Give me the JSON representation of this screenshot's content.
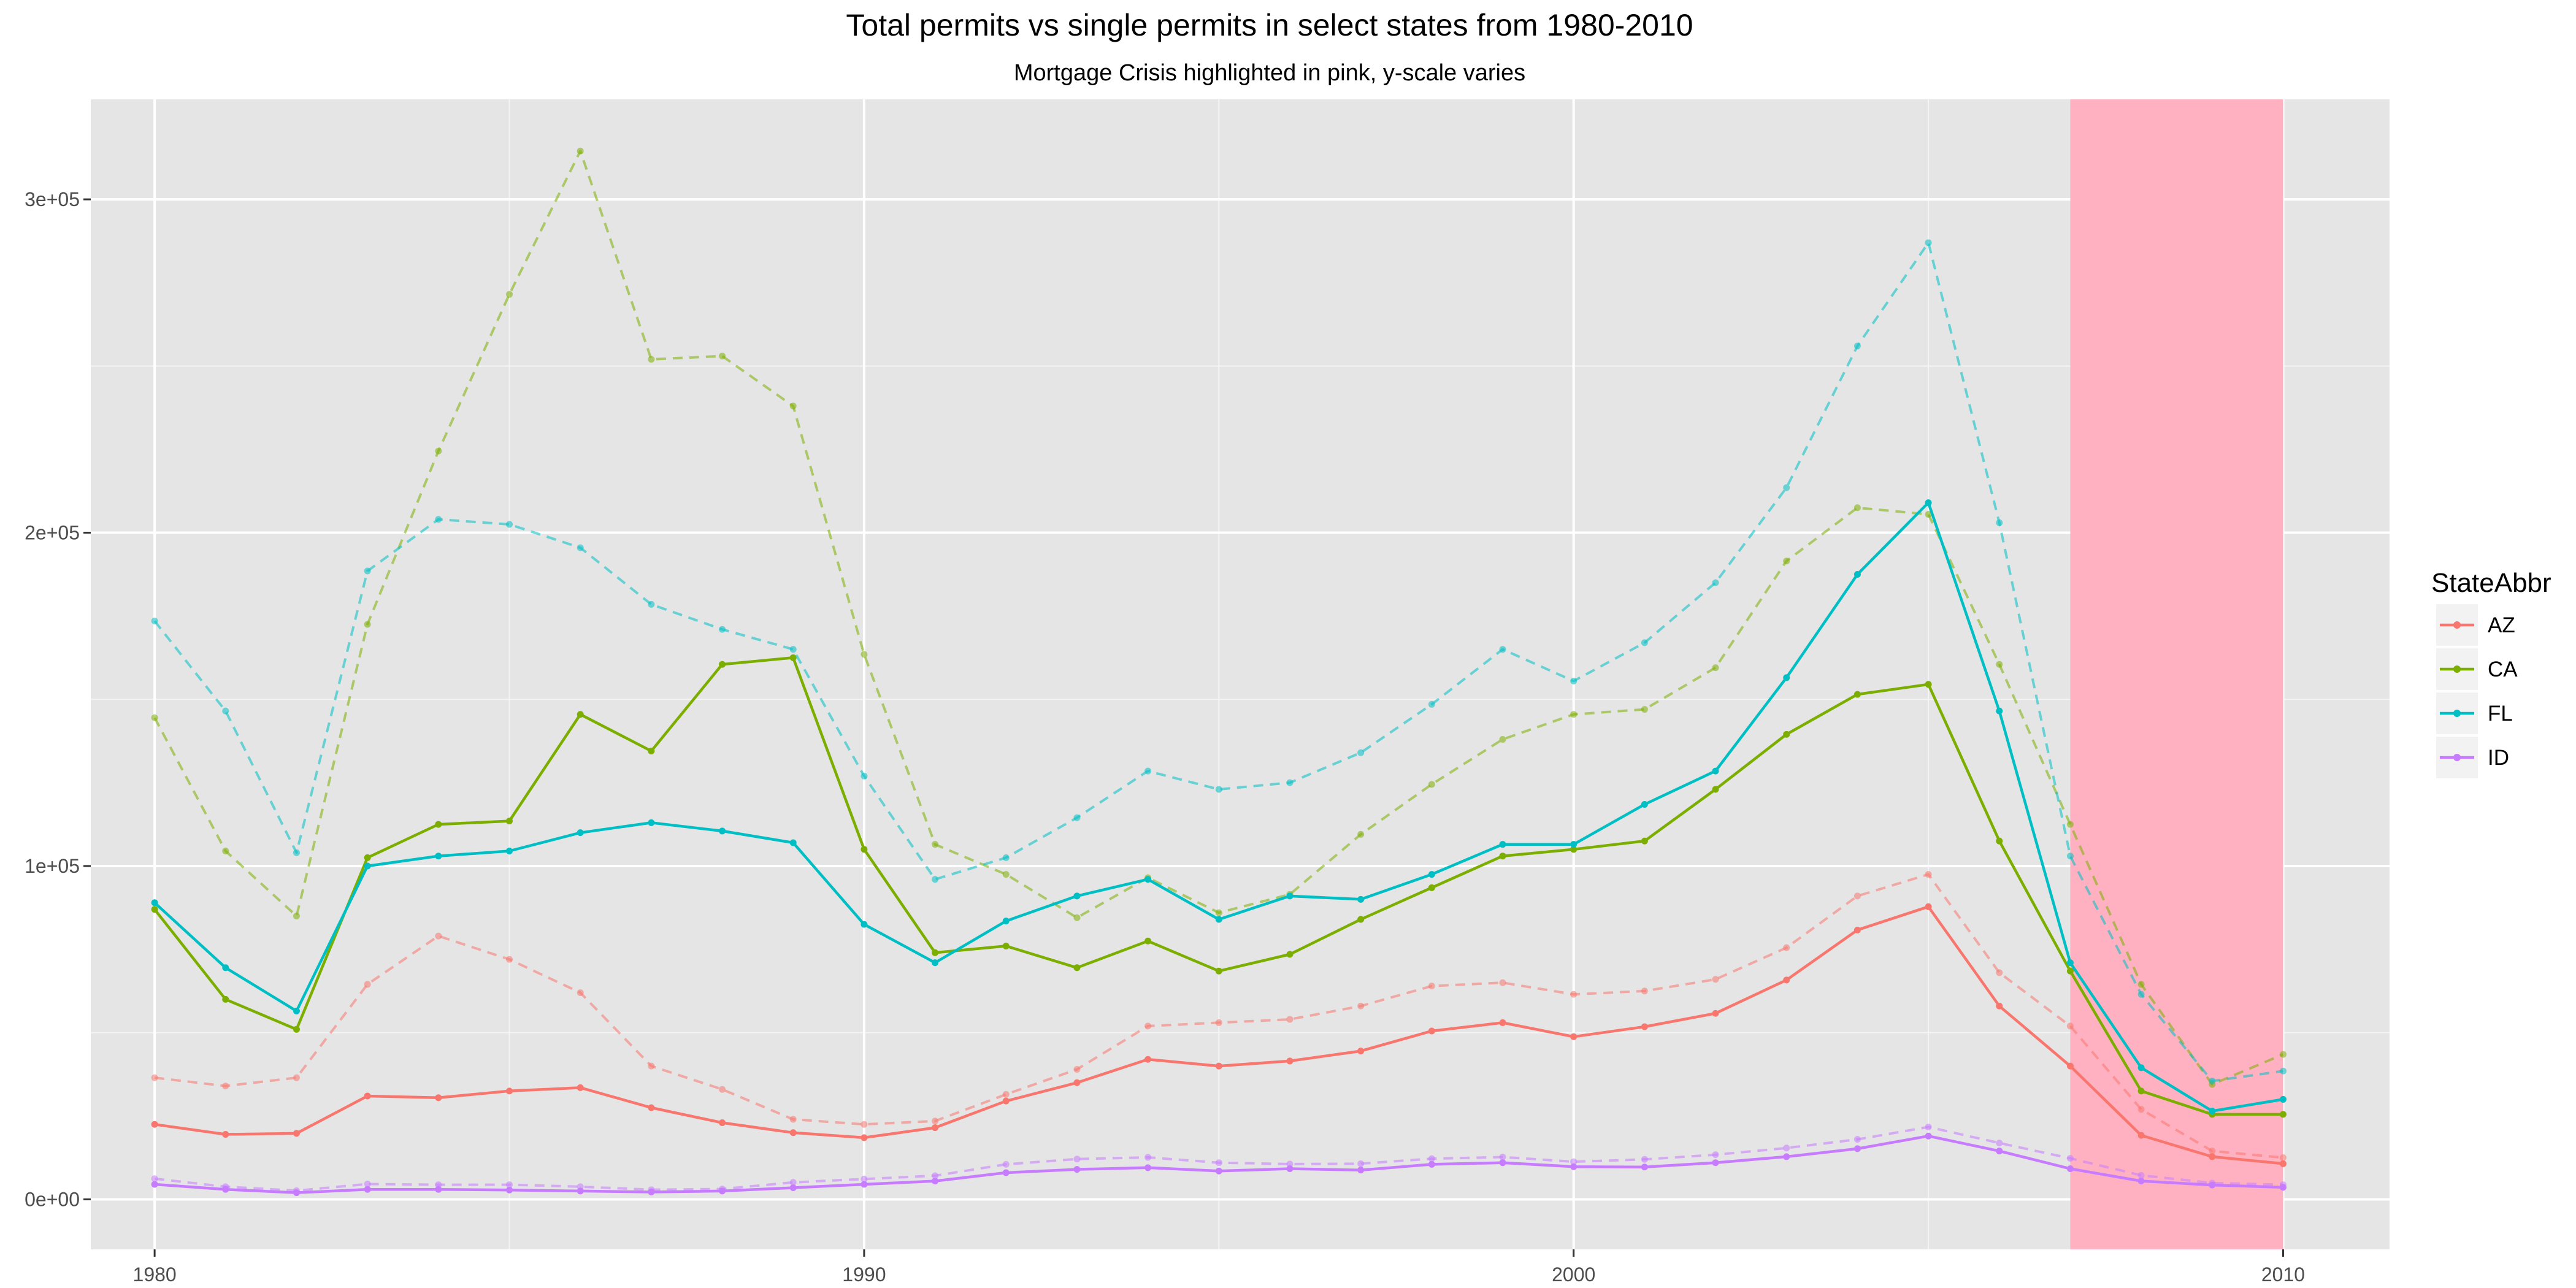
{
  "chart_data": {
    "type": "line",
    "title": "Total permits vs single permits in select states from 1980-2010",
    "subtitle": "Mortgage Crisis highlighted in pink, y-scale varies",
    "x": [
      1980,
      1981,
      1982,
      1983,
      1984,
      1985,
      1986,
      1987,
      1988,
      1989,
      1990,
      1991,
      1992,
      1993,
      1994,
      1995,
      1996,
      1997,
      1998,
      1999,
      2000,
      2001,
      2002,
      2003,
      2004,
      2005,
      2006,
      2007,
      2008,
      2009,
      2010
    ],
    "xlim": [
      1979.1,
      2011.5
    ],
    "ylim": [
      -15000,
      330000
    ],
    "x_ticks": [
      1980,
      1990,
      2000,
      2010
    ],
    "x_tick_labels": [
      "1980",
      "1990",
      "2000",
      "2010"
    ],
    "y_ticks": [
      0,
      100000,
      200000,
      300000
    ],
    "y_tick_labels": [
      "0e+00",
      "1e+05",
      "2e+05",
      "3e+05"
    ],
    "highlight": {
      "from": 2007,
      "to": 2010,
      "color": "#ffb1c1"
    },
    "legend": {
      "title": "StateAbbr",
      "position": "right"
    },
    "grid": true,
    "series": [
      {
        "name": "AZ",
        "color": "#f8766d",
        "single": [
          22500,
          19500,
          19800,
          31000,
          30500,
          32500,
          33500,
          27500,
          23000,
          20000,
          18500,
          21500,
          29500,
          35000,
          42000,
          40000,
          41500,
          44500,
          50500,
          53000,
          48800,
          51800,
          55800,
          65800,
          80800,
          87800,
          58000,
          40000,
          19200,
          12800,
          10700
        ],
        "total": [
          36500,
          34000,
          36500,
          64500,
          79000,
          72000,
          62000,
          40000,
          33000,
          24000,
          22500,
          23500,
          31500,
          39000,
          52000,
          53000,
          54000,
          58000,
          64000,
          65000,
          61500,
          62500,
          66000,
          75500,
          91000,
          97500,
          68000,
          52000,
          27000,
          14500,
          12500
        ]
      },
      {
        "name": "CA",
        "color": "#7cae00",
        "single": [
          87000,
          60000,
          51000,
          102500,
          112500,
          113500,
          145500,
          134500,
          160500,
          162500,
          105000,
          74000,
          76000,
          69500,
          77500,
          68500,
          73500,
          84000,
          93500,
          103000,
          105000,
          107500,
          123000,
          139500,
          151500,
          154500,
          107500,
          68500,
          32500,
          25500,
          25500
        ],
        "total": [
          144500,
          104500,
          85000,
          172500,
          224500,
          271500,
          314500,
          252000,
          253000,
          238000,
          163500,
          106500,
          97500,
          84500,
          96500,
          86000,
          91500,
          109500,
          124500,
          138000,
          145500,
          147000,
          159500,
          191500,
          207500,
          205500,
          160500,
          112500,
          64500,
          34500,
          43500
        ]
      },
      {
        "name": "FL",
        "color": "#00bfc4",
        "single": [
          89000,
          69500,
          56500,
          100000,
          103000,
          104500,
          110000,
          113000,
          110500,
          107000,
          82500,
          71000,
          83500,
          91000,
          96000,
          84000,
          91000,
          90000,
          97500,
          106500,
          106500,
          118500,
          128500,
          156500,
          187500,
          209000,
          146500,
          71000,
          39500,
          26500,
          30000
        ],
        "total": [
          173500,
          146500,
          104000,
          188500,
          204000,
          202500,
          195500,
          178500,
          171000,
          165000,
          127000,
          96000,
          102500,
          114500,
          128500,
          123000,
          125000,
          134000,
          148500,
          165000,
          155500,
          167000,
          185000,
          213500,
          256000,
          287000,
          203000,
          103000,
          61500,
          35500,
          38500
        ]
      },
      {
        "name": "ID",
        "color": "#c77cff",
        "single": [
          4500,
          3000,
          2000,
          3000,
          3000,
          2800,
          2500,
          2200,
          2500,
          3500,
          4500,
          5500,
          8000,
          9000,
          9500,
          8500,
          9200,
          8800,
          10500,
          11000,
          9800,
          9700,
          11000,
          12800,
          15200,
          19000,
          14500,
          9200,
          5500,
          4300,
          3600
        ],
        "total": [
          6200,
          3800,
          2600,
          4600,
          4400,
          4400,
          3800,
          2900,
          3100,
          5100,
          6100,
          7100,
          10500,
          12100,
          12600,
          11000,
          10600,
          10700,
          12200,
          12700,
          11300,
          12000,
          13400,
          15400,
          18000,
          21700,
          16900,
          12300,
          7200,
          4900,
          4400
        ]
      }
    ]
  }
}
